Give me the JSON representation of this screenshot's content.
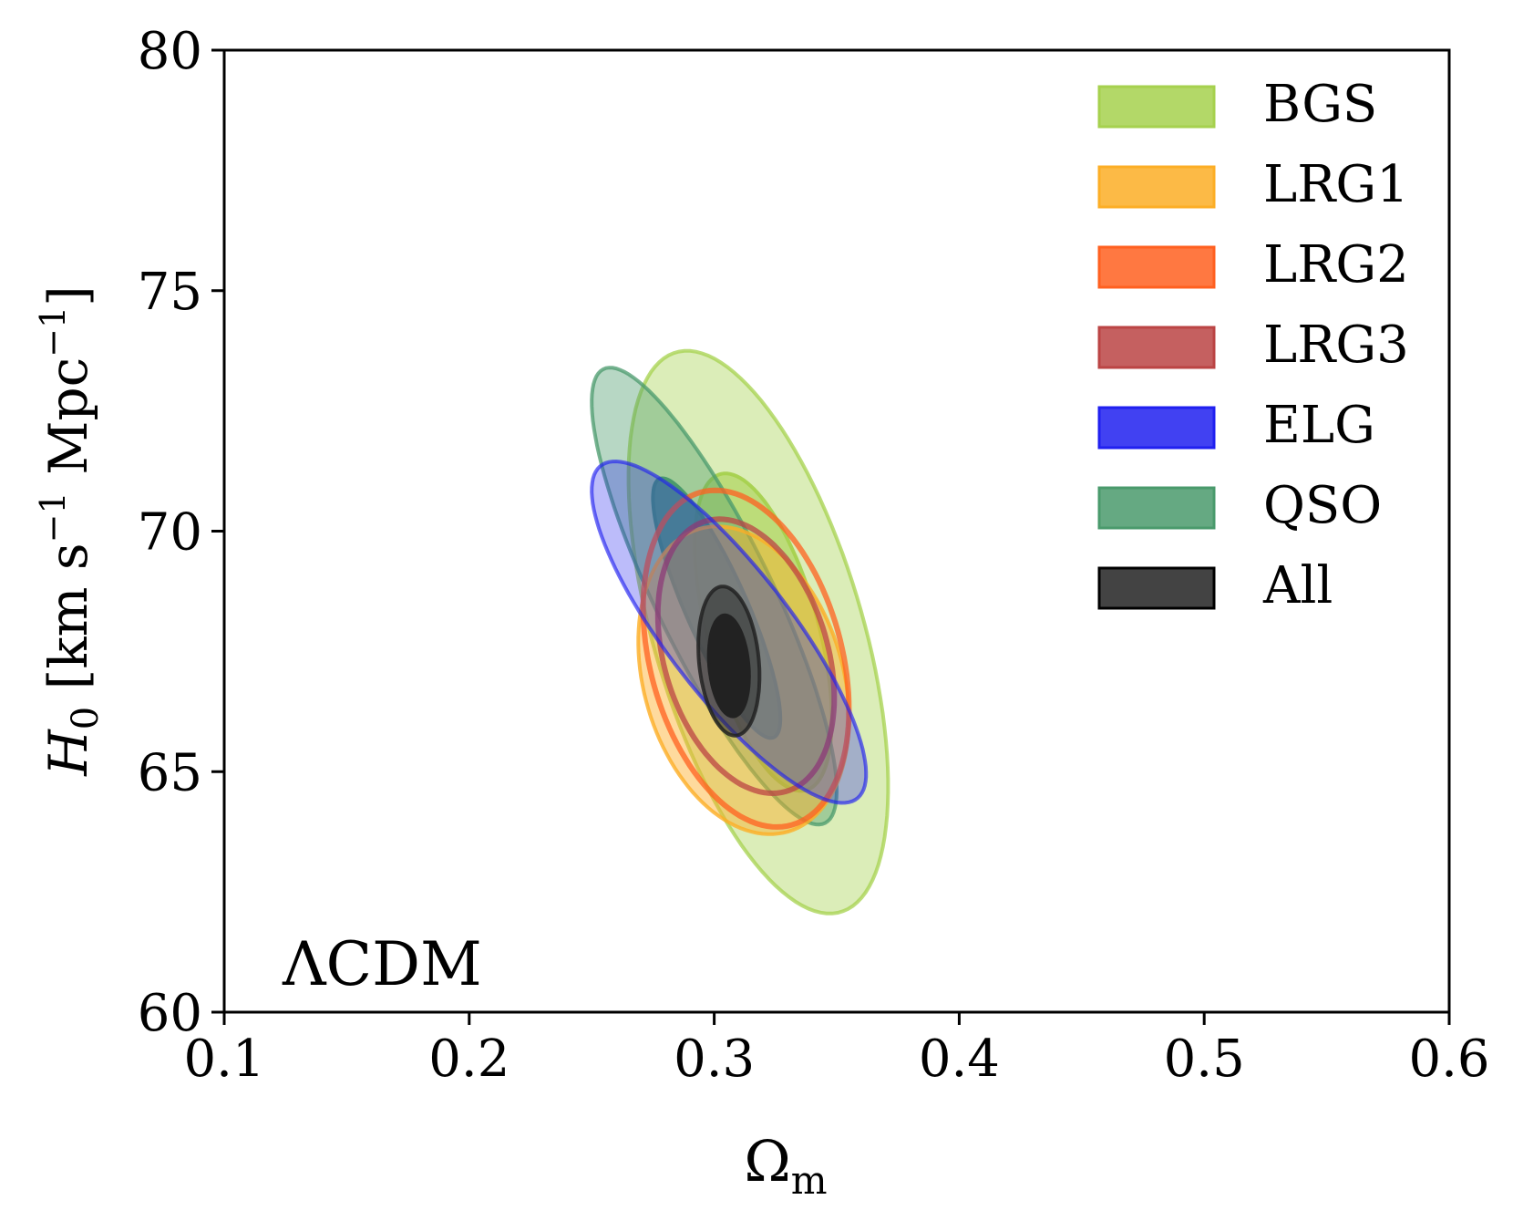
{
  "chart_data": {
    "type": "contour",
    "annotation": "ΛCDM",
    "xlabel": "Ω",
    "xlabel_sub": "m",
    "ylabel": {
      "symbol": "H",
      "sub": "0",
      "units_pre": " [km s",
      "sup1": "−1",
      "units_mid": " Mpc",
      "sup2": "−1",
      "units_post": "]"
    },
    "xlim": [
      0.1,
      0.6
    ],
    "ylim": [
      60,
      80
    ],
    "xticks": [
      0.1,
      0.2,
      0.3,
      0.4,
      0.5,
      0.6
    ],
    "xtick_labels": [
      "0.1",
      "0.2",
      "0.3",
      "0.4",
      "0.5",
      "0.6"
    ],
    "yticks": [
      60,
      65,
      70,
      75,
      80
    ],
    "ytick_labels": [
      "60",
      "65",
      "70",
      "75",
      "80"
    ],
    "legend_position": "top-right",
    "series": [
      {
        "name": "BGS",
        "fill": "#a6d14e",
        "contours": [
          {
            "level": "95%",
            "cx": 0.318,
            "cy": 67.9,
            "a": 0.053,
            "b": 5.85,
            "rho": -0.55,
            "style": "fill",
            "opacity": 0.4
          },
          {
            "level": "68%",
            "cx": 0.32,
            "cy": 67.9,
            "a": 0.028,
            "b": 3.3,
            "rho": -0.55,
            "style": "fill",
            "opacity": 0.6
          }
        ]
      },
      {
        "name": "LRG1",
        "fill": "#fcae26",
        "contours": [
          {
            "level": "95%",
            "cx": 0.312,
            "cy": 66.9,
            "a": 0.043,
            "b": 3.2,
            "rho": -0.25,
            "style": "fill",
            "opacity": 0.45
          }
        ]
      },
      {
        "name": "LRG2",
        "fill": "#ff6020",
        "contours": [
          {
            "level": "95%",
            "cx": 0.313,
            "cy": 67.35,
            "a": 0.042,
            "b": 3.5,
            "rho": -0.3,
            "style": "line",
            "opacity": 0.75
          }
        ]
      },
      {
        "name": "LRG3",
        "fill": "#bb4444",
        "contours": [
          {
            "level": "95%",
            "cx": 0.313,
            "cy": 67.4,
            "a": 0.036,
            "b": 2.85,
            "rho": -0.3,
            "style": "line",
            "opacity": 0.75
          }
        ]
      },
      {
        "name": "ELG",
        "fill": "#2020f0",
        "contours": [
          {
            "level": "95%",
            "cx": 0.306,
            "cy": 67.9,
            "a": 0.056,
            "b": 3.55,
            "rho": -0.83,
            "style": "fill",
            "opacity": 0.3
          }
        ]
      },
      {
        "name": "QSO",
        "fill": "#4a9a6c",
        "contours": [
          {
            "level": "95%",
            "cx": 0.3,
            "cy": 68.65,
            "a": 0.05,
            "b": 4.75,
            "rho": -0.85,
            "style": "fill",
            "opacity": 0.4
          },
          {
            "level": "68%",
            "cx": 0.301,
            "cy": 68.4,
            "a": 0.026,
            "b": 2.7,
            "rho": -0.85,
            "style": "fill",
            "opacity": 0.85
          }
        ]
      },
      {
        "name": "All",
        "fill": "#222222",
        "contours": [
          {
            "level": "95%",
            "cx": 0.306,
            "cy": 67.3,
            "a": 0.0125,
            "b": 1.55,
            "rho": -0.2,
            "style": "fill",
            "opacity": 0.5
          },
          {
            "level": "68%",
            "cx": 0.306,
            "cy": 67.2,
            "a": 0.0082,
            "b": 1.05,
            "rho": -0.2,
            "style": "fill",
            "opacity": 1.0
          }
        ]
      }
    ]
  }
}
